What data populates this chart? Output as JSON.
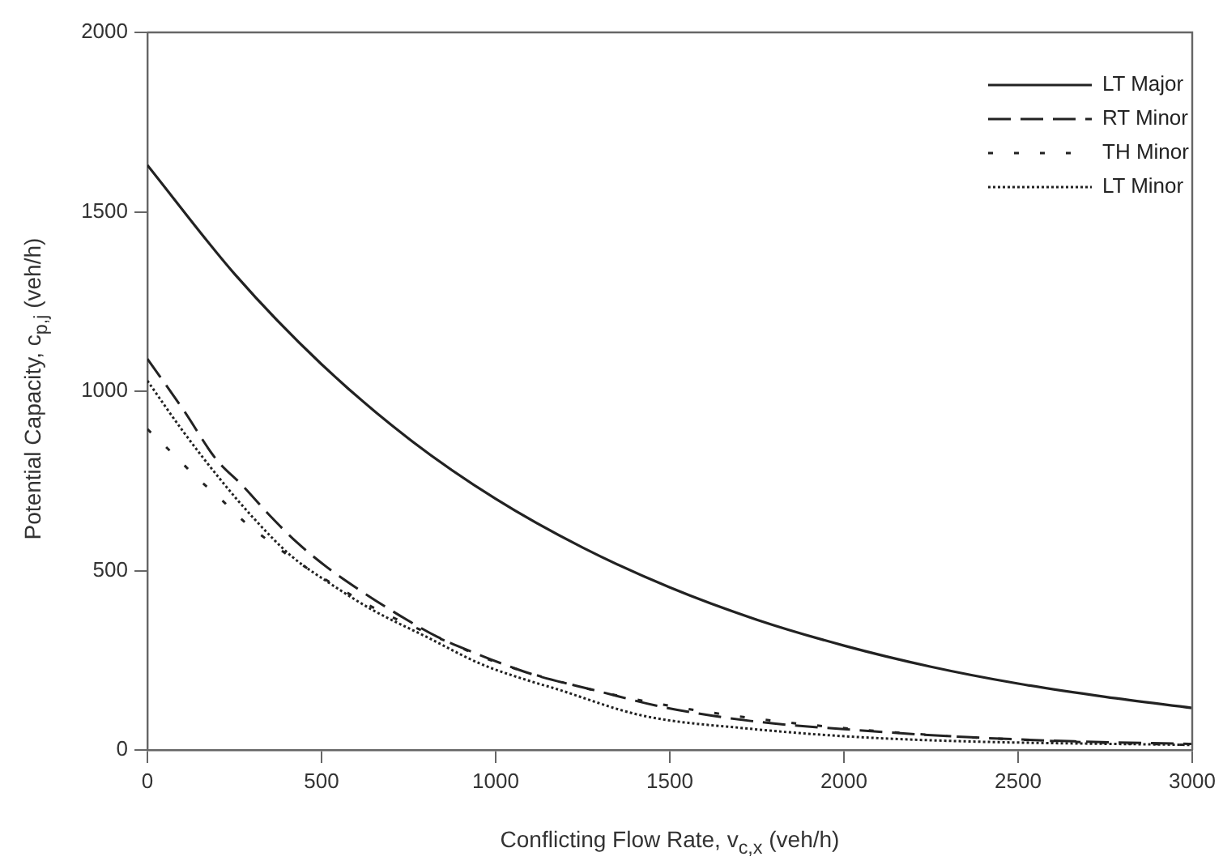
{
  "chart_data": {
    "type": "line",
    "xlabel": "Conflicting Flow Rate, v$_{c,x}$ (veh/h)",
    "ylabel": "Potential Capacity, c$_{p,j}$ (veh/h)",
    "xlim": [
      0,
      3000
    ],
    "xticks": [
      0,
      500,
      1000,
      1500,
      2000,
      2500,
      3000
    ],
    "ylim": [
      0,
      2000
    ],
    "yticks": [
      0,
      500,
      1000,
      1500,
      2000
    ],
    "grid": false,
    "legend": "top right",
    "marker": "none",
    "series": [
      {
        "name": "LT Major",
        "color": "#222222",
        "line_style": "solid",
        "x": [
          0,
          250,
          500,
          750,
          1000,
          1250,
          1500,
          1750,
          2000,
          2250,
          2500,
          2750,
          3000
        ],
        "values": [
          1630,
          1327,
          1075,
          868,
          700,
          564,
          453,
          363,
          291,
          232,
          185,
          148,
          117
        ]
      },
      {
        "name": "RT Minor",
        "color": "#222222",
        "line_style": "dashed",
        "x": [
          0,
          104,
          197,
          274,
          352,
          430,
          515,
          615,
          724,
          833,
          941,
          1065,
          1112,
          1282,
          1484,
          1732,
          2042,
          2352,
          2662,
          3000
        ],
        "values": [
          1090,
          947,
          811,
          736,
          653,
          578,
          510,
          442,
          375,
          315,
          270,
          224,
          209,
          167,
          119,
          81,
          55,
          36,
          24,
          17
        ]
      },
      {
        "name": "TH Minor",
        "color": "#222222",
        "line_style": "dashed",
        "x": [
          0,
          73,
          143,
          212,
          282,
          355,
          430,
          515,
          592,
          678,
          763,
          848,
          1000,
          1250,
          1500,
          1750,
          2000,
          2250,
          2500,
          2750,
          3000
        ],
        "values": [
          894,
          826,
          758,
          698,
          633,
          578,
          525,
          473,
          428,
          382,
          344,
          307,
          245,
          174,
          123,
          87,
          61,
          42,
          29,
          20,
          14
        ]
      },
      {
        "name": "LT Minor",
        "color": "#222222",
        "line_style": "dotted",
        "x": [
          0,
          104,
          212,
          305,
          414,
          523,
          647,
          802,
          957,
          1112,
          1158,
          1421,
          1732,
          2042,
          2352,
          3000
        ],
        "values": [
          1029,
          886,
          751,
          646,
          540,
          465,
          390,
          315,
          240,
          188,
          175,
          96,
          59,
          36,
          24,
          14
        ]
      }
    ]
  }
}
